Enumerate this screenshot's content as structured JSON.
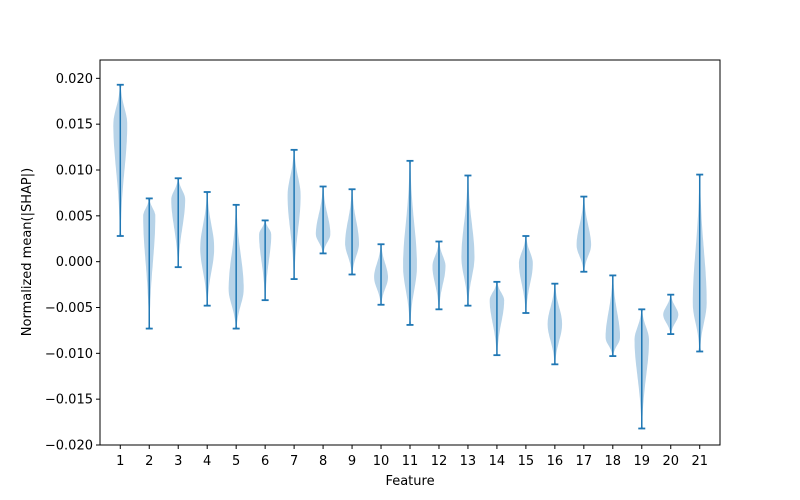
{
  "chart_data": {
    "type": "violin",
    "xlabel": "Feature",
    "ylabel": "Normalized mean(|SHAP|)",
    "ylim": [
      -0.02,
      0.022
    ],
    "yticks": [
      -0.02,
      -0.015,
      -0.01,
      -0.005,
      0.0,
      0.005,
      0.01,
      0.015,
      0.02
    ],
    "ytick_labels": [
      "−0.020",
      "−0.015",
      "−0.010",
      "−0.005",
      "0.000",
      "0.005",
      "0.010",
      "0.015",
      "0.020"
    ],
    "categories": [
      "1",
      "2",
      "3",
      "4",
      "5",
      "6",
      "7",
      "8",
      "9",
      "10",
      "11",
      "12",
      "13",
      "14",
      "15",
      "16",
      "17",
      "18",
      "19",
      "20",
      "21"
    ],
    "violin_color": "#aacbe4",
    "line_color": "#1f77b4",
    "violins": [
      {
        "category": "1",
        "min": 0.0028,
        "max": 0.0193,
        "center": 0.015,
        "width": 0.48
      },
      {
        "category": "2",
        "min": -0.0073,
        "max": 0.0069,
        "center": 0.005,
        "width": 0.42
      },
      {
        "category": "3",
        "min": -0.0006,
        "max": 0.0091,
        "center": 0.0068,
        "width": 0.48
      },
      {
        "category": "4",
        "min": -0.0048,
        "max": 0.0076,
        "center": 0.0015,
        "width": 0.48
      },
      {
        "category": "5",
        "min": -0.0073,
        "max": 0.0062,
        "center": -0.003,
        "width": 0.52
      },
      {
        "category": "6",
        "min": -0.0042,
        "max": 0.0045,
        "center": 0.003,
        "width": 0.42
      },
      {
        "category": "7",
        "min": -0.0019,
        "max": 0.0122,
        "center": 0.0072,
        "width": 0.45
      },
      {
        "category": "8",
        "min": 0.0009,
        "max": 0.0082,
        "center": 0.003,
        "width": 0.5
      },
      {
        "category": "9",
        "min": -0.0014,
        "max": 0.0079,
        "center": 0.002,
        "width": 0.48
      },
      {
        "category": "10",
        "min": -0.0047,
        "max": 0.0019,
        "center": -0.0017,
        "width": 0.48
      },
      {
        "category": "11",
        "min": -0.0069,
        "max": 0.011,
        "center": -0.0005,
        "width": 0.48
      },
      {
        "category": "12",
        "min": -0.0052,
        "max": 0.0022,
        "center": -0.0005,
        "width": 0.45
      },
      {
        "category": "13",
        "min": -0.0048,
        "max": 0.0094,
        "center": 0.0005,
        "width": 0.45
      },
      {
        "category": "14",
        "min": -0.0102,
        "max": -0.0022,
        "center": -0.0042,
        "width": 0.5
      },
      {
        "category": "15",
        "min": -0.0056,
        "max": 0.0028,
        "center": -0.0002,
        "width": 0.48
      },
      {
        "category": "16",
        "min": -0.0112,
        "max": -0.0024,
        "center": -0.0068,
        "width": 0.5
      },
      {
        "category": "17",
        "min": -0.0011,
        "max": 0.0071,
        "center": 0.0018,
        "width": 0.5
      },
      {
        "category": "18",
        "min": -0.0103,
        "max": -0.0015,
        "center": -0.0083,
        "width": 0.5
      },
      {
        "category": "19",
        "min": -0.0182,
        "max": -0.0052,
        "center": -0.0085,
        "width": 0.5
      },
      {
        "category": "20",
        "min": -0.0079,
        "max": -0.0036,
        "center": -0.0058,
        "width": 0.52
      },
      {
        "category": "21",
        "min": -0.0098,
        "max": 0.0095,
        "center": -0.0045,
        "width": 0.48
      }
    ]
  }
}
